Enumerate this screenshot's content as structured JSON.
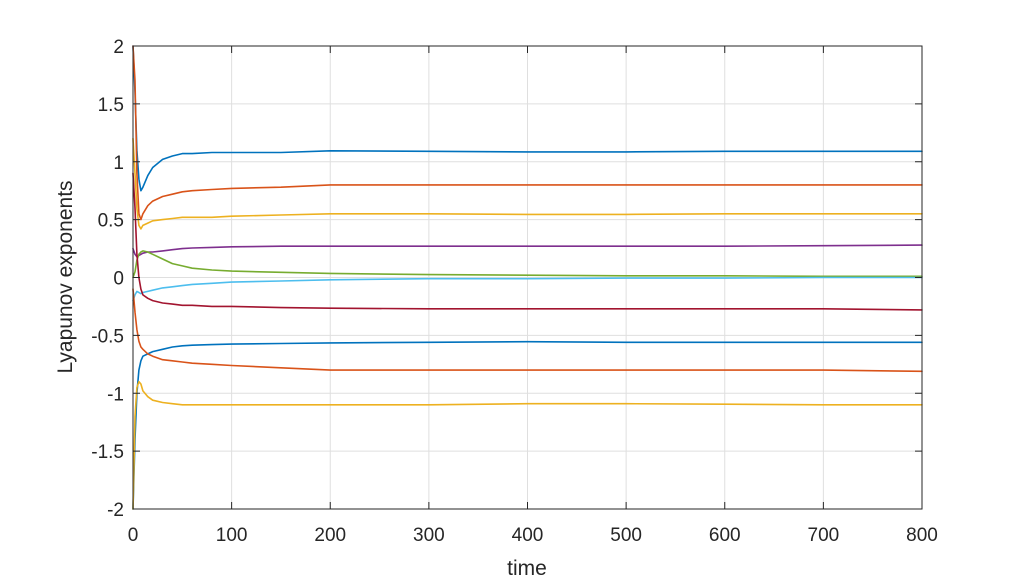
{
  "chart_data": {
    "type": "line",
    "xlabel": "time",
    "ylabel": "Lyapunov exponents",
    "xlim": [
      0,
      800
    ],
    "ylim": [
      -2,
      2
    ],
    "grid": true,
    "x_ticks": [
      0,
      100,
      200,
      300,
      400,
      500,
      600,
      700,
      800
    ],
    "y_ticks": [
      -2,
      -1.5,
      -1,
      -0.5,
      0,
      0.5,
      1,
      1.5,
      2
    ],
    "x_tick_labels": [
      "0",
      "100",
      "200",
      "300",
      "400",
      "500",
      "600",
      "700",
      "800"
    ],
    "y_tick_labels": [
      "-2",
      "-1.5",
      "-1",
      "-0.5",
      "0",
      "0.5",
      "1",
      "1.5",
      "2"
    ],
    "x": [
      0,
      2,
      4,
      6,
      8,
      10,
      15,
      20,
      30,
      40,
      50,
      60,
      80,
      100,
      150,
      200,
      300,
      400,
      500,
      600,
      700,
      800
    ],
    "series": [
      {
        "color": "#0072bd",
        "values": [
          2.0,
          1.6,
          1.1,
          0.85,
          0.75,
          0.78,
          0.88,
          0.95,
          1.02,
          1.05,
          1.07,
          1.07,
          1.08,
          1.08,
          1.08,
          1.095,
          1.09,
          1.085,
          1.085,
          1.09,
          1.09,
          1.09
        ]
      },
      {
        "color": "#d95319",
        "values": [
          2.0,
          1.7,
          0.9,
          0.55,
          0.5,
          0.55,
          0.62,
          0.66,
          0.7,
          0.72,
          0.74,
          0.75,
          0.76,
          0.77,
          0.78,
          0.8,
          0.8,
          0.8,
          0.8,
          0.8,
          0.8,
          0.8
        ]
      },
      {
        "color": "#edb120",
        "values": [
          1.2,
          0.9,
          0.6,
          0.45,
          0.42,
          0.45,
          0.47,
          0.49,
          0.5,
          0.51,
          0.52,
          0.52,
          0.52,
          0.53,
          0.54,
          0.55,
          0.55,
          0.545,
          0.545,
          0.55,
          0.55,
          0.55
        ]
      },
      {
        "color": "#7e2f8e",
        "values": [
          0.25,
          0.2,
          0.18,
          0.19,
          0.2,
          0.21,
          0.22,
          0.22,
          0.23,
          0.24,
          0.25,
          0.255,
          0.26,
          0.265,
          0.27,
          0.27,
          0.27,
          0.27,
          0.27,
          0.27,
          0.275,
          0.28
        ]
      },
      {
        "color": "#77ac30",
        "values": [
          0.0,
          0.05,
          0.15,
          0.2,
          0.22,
          0.23,
          0.22,
          0.2,
          0.16,
          0.12,
          0.1,
          0.08,
          0.065,
          0.055,
          0.045,
          0.035,
          0.025,
          0.02,
          0.015,
          0.015,
          0.01,
          0.01
        ]
      },
      {
        "color": "#4dbeee",
        "values": [
          -0.2,
          -0.15,
          -0.12,
          -0.13,
          -0.14,
          -0.13,
          -0.12,
          -0.11,
          -0.09,
          -0.08,
          -0.07,
          -0.06,
          -0.05,
          -0.04,
          -0.03,
          -0.02,
          -0.01,
          -0.01,
          -0.005,
          -0.005,
          0.0,
          0.0
        ]
      },
      {
        "color": "#a2142f",
        "values": [
          0.9,
          0.6,
          0.2,
          0.0,
          -0.1,
          -0.15,
          -0.18,
          -0.2,
          -0.22,
          -0.23,
          -0.24,
          -0.24,
          -0.25,
          -0.25,
          -0.26,
          -0.265,
          -0.27,
          -0.27,
          -0.27,
          -0.27,
          -0.27,
          -0.28
        ]
      },
      {
        "color": "#0072bd",
        "values": [
          -2.0,
          -1.4,
          -1.0,
          -0.8,
          -0.72,
          -0.68,
          -0.66,
          -0.64,
          -0.62,
          -0.6,
          -0.59,
          -0.585,
          -0.58,
          -0.575,
          -0.57,
          -0.565,
          -0.56,
          -0.555,
          -0.56,
          -0.56,
          -0.56,
          -0.56
        ]
      },
      {
        "color": "#d95319",
        "values": [
          -0.1,
          -0.3,
          -0.45,
          -0.55,
          -0.6,
          -0.62,
          -0.66,
          -0.68,
          -0.71,
          -0.72,
          -0.73,
          -0.74,
          -0.75,
          -0.76,
          -0.78,
          -0.8,
          -0.8,
          -0.8,
          -0.8,
          -0.8,
          -0.8,
          -0.81
        ]
      },
      {
        "color": "#edb120",
        "values": [
          -2.0,
          -1.2,
          -0.95,
          -0.9,
          -0.92,
          -0.98,
          -1.03,
          -1.06,
          -1.08,
          -1.09,
          -1.1,
          -1.1,
          -1.1,
          -1.1,
          -1.1,
          -1.1,
          -1.1,
          -1.09,
          -1.09,
          -1.095,
          -1.1,
          -1.1
        ]
      }
    ]
  }
}
